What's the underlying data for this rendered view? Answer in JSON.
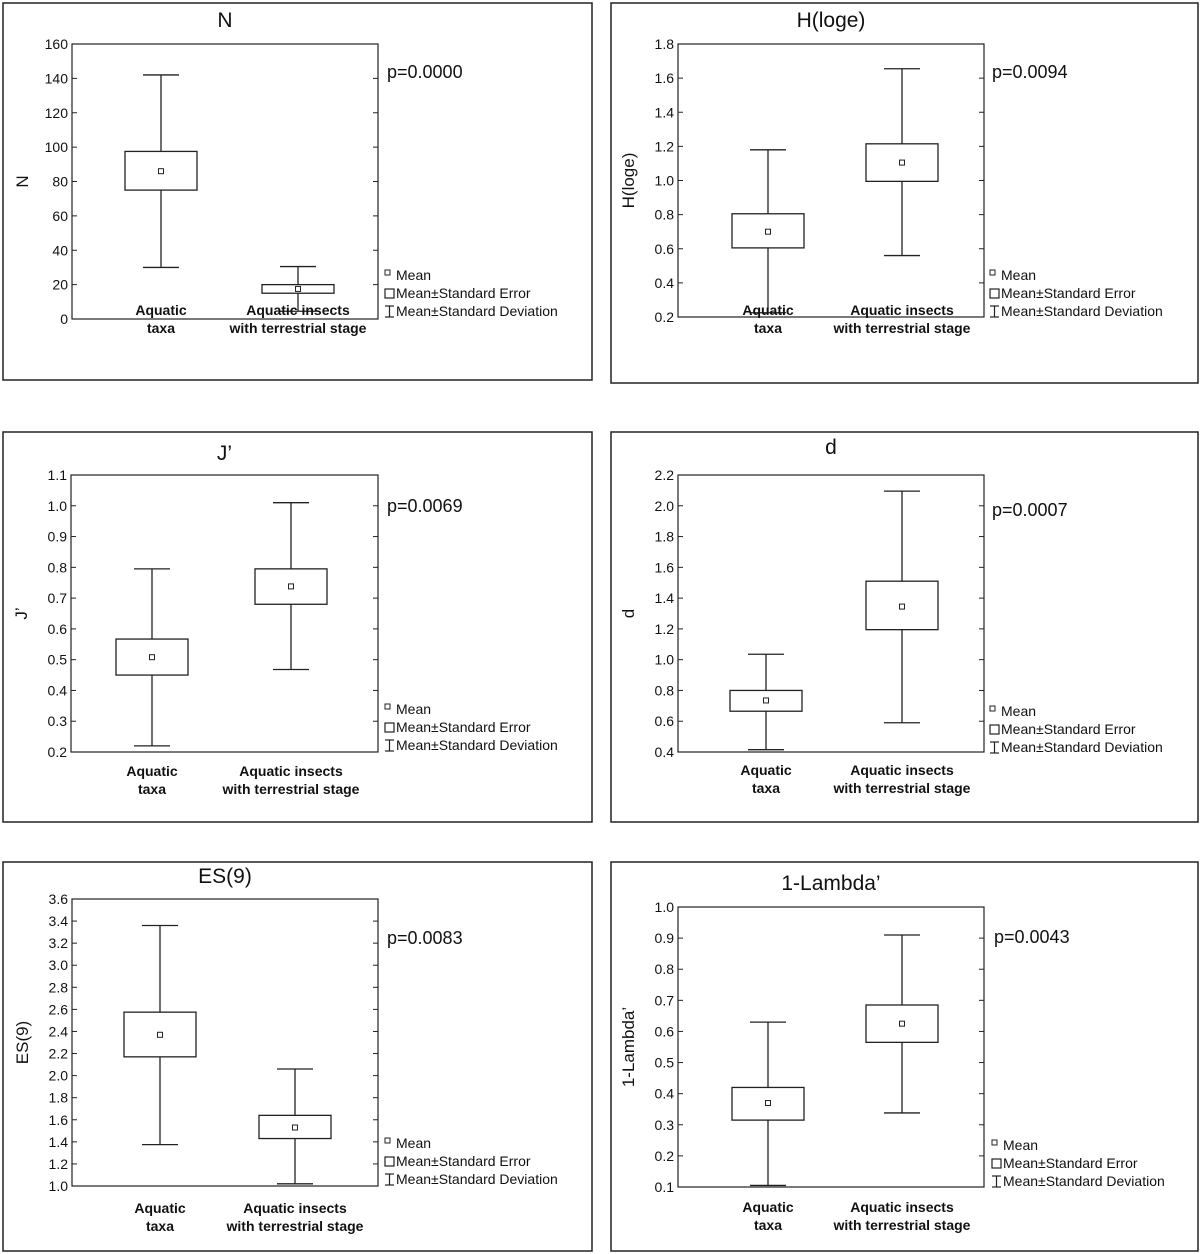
{
  "chart_data": [
    {
      "type": "box",
      "title": "N",
      "ylabel": "N",
      "ylim": [
        0,
        160
      ],
      "yticks": [
        "0",
        "20",
        "40",
        "60",
        "80",
        "100",
        "120",
        "140",
        "160"
      ],
      "categories": [
        "Aquatic taxa",
        "Aquatic insects with terrestrial stage"
      ],
      "category_lines": [
        [
          "Aquatic",
          "taxa"
        ],
        [
          "Aquatic insects",
          "with terrestrial stage"
        ]
      ],
      "mean": [
        86,
        17.5
      ],
      "se": [
        [
          75,
          97.5
        ],
        [
          15,
          20
        ]
      ],
      "sd": [
        [
          30,
          142
        ],
        [
          4.5,
          30.5
        ]
      ],
      "p_value": "p=0.0000",
      "legend": [
        "Mean",
        "Mean±Standard Error",
        "Mean±Standard Deviation"
      ]
    },
    {
      "type": "box",
      "title": "H(loge)",
      "ylabel": "H(loge)",
      "ylim": [
        0.2,
        1.8
      ],
      "yticks": [
        "0.2",
        "0.4",
        "0.6",
        "0.8",
        "1.0",
        "1.2",
        "1.4",
        "1.6",
        "1.8"
      ],
      "categories": [
        "Aquatic taxa",
        "Aquatic insects with terrestrial stage"
      ],
      "category_lines": [
        [
          "Aquatic",
          "taxa"
        ],
        [
          "Aquatic insects",
          "with terrestrial stage"
        ]
      ],
      "mean": [
        0.7,
        1.105
      ],
      "se": [
        [
          0.605,
          0.805
        ],
        [
          0.995,
          1.215
        ]
      ],
      "sd": [
        [
          0.225,
          1.18
        ],
        [
          0.56,
          1.655
        ]
      ],
      "p_value": "p=0.0094",
      "legend": [
        "Mean",
        "Mean±Standard Error",
        "Mean±Standard Deviation"
      ]
    },
    {
      "type": "box",
      "title": "J’",
      "ylabel": "J’",
      "ylim": [
        0.2,
        1.1
      ],
      "yticks": [
        "0.2",
        "0.3",
        "0.4",
        "0.5",
        "0.6",
        "0.7",
        "0.8",
        "0.9",
        "1.0",
        "1.1"
      ],
      "categories": [
        "Aquatic taxa",
        "Aquatic insects with terrestrial stage"
      ],
      "category_lines": [
        [
          "Aquatic",
          "taxa"
        ],
        [
          "Aquatic insects",
          "with terrestrial stage"
        ]
      ],
      "mean": [
        0.508,
        0.738
      ],
      "se": [
        [
          0.45,
          0.567
        ],
        [
          0.68,
          0.795
        ]
      ],
      "sd": [
        [
          0.22,
          0.795
        ],
        [
          0.468,
          1.01
        ]
      ],
      "p_value": "p=0.0069",
      "legend": [
        "Mean",
        "Mean±Standard Error",
        "Mean±Standard Deviation"
      ]
    },
    {
      "type": "box",
      "title": "d",
      "ylabel": "d",
      "ylim": [
        0.4,
        2.2
      ],
      "yticks": [
        "0.4",
        "0.6",
        "0.8",
        "1.0",
        "1.2",
        "1.4",
        "1.6",
        "1.8",
        "2.0",
        "2.2"
      ],
      "categories": [
        "Aquatic taxa",
        "Aquatic insects with terrestrial stage"
      ],
      "category_lines": [
        [
          "Aquatic",
          "taxa"
        ],
        [
          "Aquatic insects",
          "with terrestrial stage"
        ]
      ],
      "mean": [
        0.735,
        1.345
      ],
      "se": [
        [
          0.665,
          0.8
        ],
        [
          1.195,
          1.51
        ]
      ],
      "sd": [
        [
          0.415,
          1.035
        ],
        [
          0.59,
          2.095
        ]
      ],
      "p_value": "p=0.0007",
      "legend": [
        "Mean",
        "Mean±Standard Error",
        "Mean±Standard Deviation"
      ]
    },
    {
      "type": "box",
      "title": "ES(9)",
      "ylabel": "ES(9)",
      "ylim": [
        1.0,
        3.6
      ],
      "yticks": [
        "1.0",
        "1.2",
        "1.4",
        "1.6",
        "1.8",
        "2.0",
        "2.2",
        "2.4",
        "2.6",
        "2.8",
        "3.0",
        "3.2",
        "3.4",
        "3.6"
      ],
      "categories": [
        "Aquatic taxa",
        "Aquatic insects with terrestrial stage"
      ],
      "category_lines": [
        [
          "Aquatic",
          "taxa"
        ],
        [
          "Aquatic insects",
          "with terrestrial stage"
        ]
      ],
      "mean": [
        2.37,
        1.53
      ],
      "se": [
        [
          2.17,
          2.575
        ],
        [
          1.43,
          1.64
        ]
      ],
      "sd": [
        [
          1.375,
          3.36
        ],
        [
          1.02,
          2.06
        ]
      ],
      "p_value": "p=0.0083",
      "legend": [
        "Mean",
        "Mean±Standard Error",
        "Mean±Standard Deviation"
      ]
    },
    {
      "type": "box",
      "title": "1-Lambda’",
      "ylabel": "1-Lambda’",
      "ylim": [
        0.1,
        1.0
      ],
      "yticks": [
        "0.1",
        "0.2",
        "0.3",
        "0.4",
        "0.5",
        "0.6",
        "0.7",
        "0.8",
        "0.9",
        "1.0"
      ],
      "categories": [
        "Aquatic taxa",
        "Aquatic insects with terrestrial stage"
      ],
      "category_lines": [
        [
          "Aquatic",
          "taxa"
        ],
        [
          "Aquatic insects",
          "with terrestrial stage"
        ]
      ],
      "mean": [
        0.37,
        0.625
      ],
      "se": [
        [
          0.315,
          0.42
        ],
        [
          0.565,
          0.685
        ]
      ],
      "sd": [
        [
          0.105,
          0.63
        ],
        [
          0.338,
          0.91
        ]
      ],
      "p_value": "p=0.0043",
      "legend": [
        "Mean",
        "Mean±Standard Error",
        "Mean±Standard Deviation"
      ]
    }
  ]
}
